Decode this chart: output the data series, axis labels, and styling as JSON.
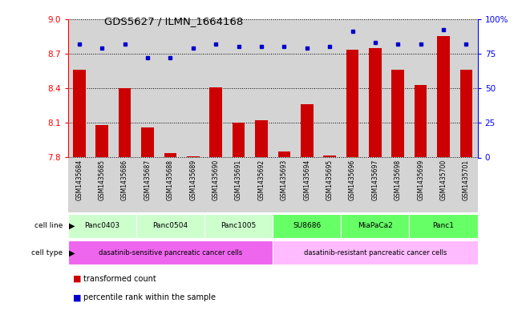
{
  "title": "GDS5627 / ILMN_1664168",
  "samples": [
    "GSM1435684",
    "GSM1435685",
    "GSM1435686",
    "GSM1435687",
    "GSM1435688",
    "GSM1435689",
    "GSM1435690",
    "GSM1435691",
    "GSM1435692",
    "GSM1435693",
    "GSM1435694",
    "GSM1435695",
    "GSM1435696",
    "GSM1435697",
    "GSM1435698",
    "GSM1435699",
    "GSM1435700",
    "GSM1435701"
  ],
  "transformed_counts": [
    8.56,
    8.08,
    8.4,
    8.06,
    7.84,
    7.81,
    8.41,
    8.1,
    8.12,
    7.85,
    8.26,
    7.82,
    8.73,
    8.75,
    8.56,
    8.43,
    8.85,
    8.56
  ],
  "percentile_ranks": [
    82,
    79,
    82,
    72,
    72,
    79,
    82,
    80,
    80,
    80,
    79,
    80,
    91,
    83,
    82,
    82,
    92,
    82
  ],
  "cell_lines": [
    {
      "name": "Panc0403",
      "start": 0,
      "end": 3,
      "color": "#ccffcc"
    },
    {
      "name": "Panc0504",
      "start": 3,
      "end": 6,
      "color": "#ccffcc"
    },
    {
      "name": "Panc1005",
      "start": 6,
      "end": 9,
      "color": "#ccffcc"
    },
    {
      "name": "SU8686",
      "start": 9,
      "end": 12,
      "color": "#66ff66"
    },
    {
      "name": "MiaPaCa2",
      "start": 12,
      "end": 15,
      "color": "#66ff66"
    },
    {
      "name": "Panc1",
      "start": 15,
      "end": 18,
      "color": "#66ff66"
    }
  ],
  "cell_types": [
    {
      "name": "dasatinib-sensitive pancreatic cancer cells",
      "start": 0,
      "end": 9,
      "color": "#ee66ee"
    },
    {
      "name": "dasatinib-resistant pancreatic cancer cells",
      "start": 9,
      "end": 18,
      "color": "#ffbbff"
    }
  ],
  "ylim_left": [
    7.8,
    9.0
  ],
  "ylim_right": [
    0,
    100
  ],
  "yticks_left": [
    7.8,
    8.1,
    8.4,
    8.7,
    9.0
  ],
  "yticks_right": [
    0,
    25,
    50,
    75,
    100
  ],
  "bar_color": "#cc0000",
  "dot_color": "#0000cc",
  "bar_bottom": 7.8,
  "legend_bar_label": "transformed count",
  "legend_dot_label": "percentile rank within the sample",
  "sample_col_color": "#d4d4d4",
  "left_label_color": "#555555"
}
